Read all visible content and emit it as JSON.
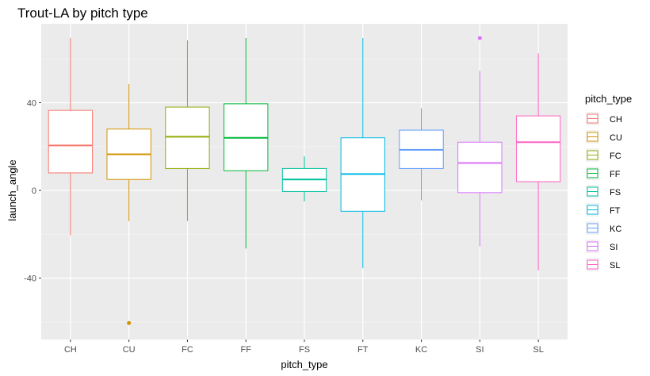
{
  "chart_data": {
    "type": "boxplot",
    "title": "Trout-LA by pitch type",
    "xlabel": "pitch_type",
    "ylabel": "launch_angle",
    "ylim": [
      -68,
      76
    ],
    "yticks": [
      -40,
      0,
      40
    ],
    "grid": true,
    "legend": {
      "title": "pitch_type",
      "position": "right"
    },
    "categories": [
      "CH",
      "CU",
      "FC",
      "FF",
      "FS",
      "FT",
      "KC",
      "SI",
      "SL"
    ],
    "boxes": [
      {
        "name": "CH",
        "color": "#F8766D",
        "whisker_low": -20.5,
        "q1": 8,
        "median": 20.5,
        "q3": 36.5,
        "whisker_high": 69.5,
        "outliers": []
      },
      {
        "name": "CU",
        "color": "#D39200",
        "whisker_low": -14,
        "q1": 5,
        "median": 16.5,
        "q3": 28,
        "whisker_high": 48.5,
        "outliers": [
          -60.5
        ]
      },
      {
        "name": "FC",
        "color": "#93AA00",
        "whisker_low": -14,
        "q1": 10,
        "median": 24.5,
        "q3": 38,
        "whisker_high": 68.5,
        "outliers": []
      },
      {
        "name": "FF",
        "color": "#00BA38",
        "whisker_low": -26.5,
        "q1": 9,
        "median": 24,
        "q3": 39.5,
        "whisker_high": 69.5,
        "outliers": []
      },
      {
        "name": "FS",
        "color": "#00C19F",
        "whisker_low": -5,
        "q1": -0.5,
        "median": 5,
        "q3": 10,
        "whisker_high": 15.5,
        "outliers": []
      },
      {
        "name": "FT",
        "color": "#00B9E3",
        "whisker_low": -35.5,
        "q1": -9.5,
        "median": 7.5,
        "q3": 24,
        "whisker_high": 69.5,
        "outliers": []
      },
      {
        "name": "KC",
        "color": "#619CFF",
        "whisker_low": -4.5,
        "q1": 10,
        "median": 18.5,
        "q3": 27.5,
        "whisker_high": 37.5,
        "outliers": []
      },
      {
        "name": "SI",
        "color": "#DB72FB",
        "whisker_low": -25.5,
        "q1": -1,
        "median": 12.5,
        "q3": 22,
        "whisker_high": 54.5,
        "outliers": [
          69.5
        ]
      },
      {
        "name": "SL",
        "color": "#FF61C3",
        "whisker_low": -36.5,
        "q1": 4,
        "median": 22,
        "q3": 34,
        "whisker_high": 62.5,
        "outliers": []
      }
    ]
  }
}
